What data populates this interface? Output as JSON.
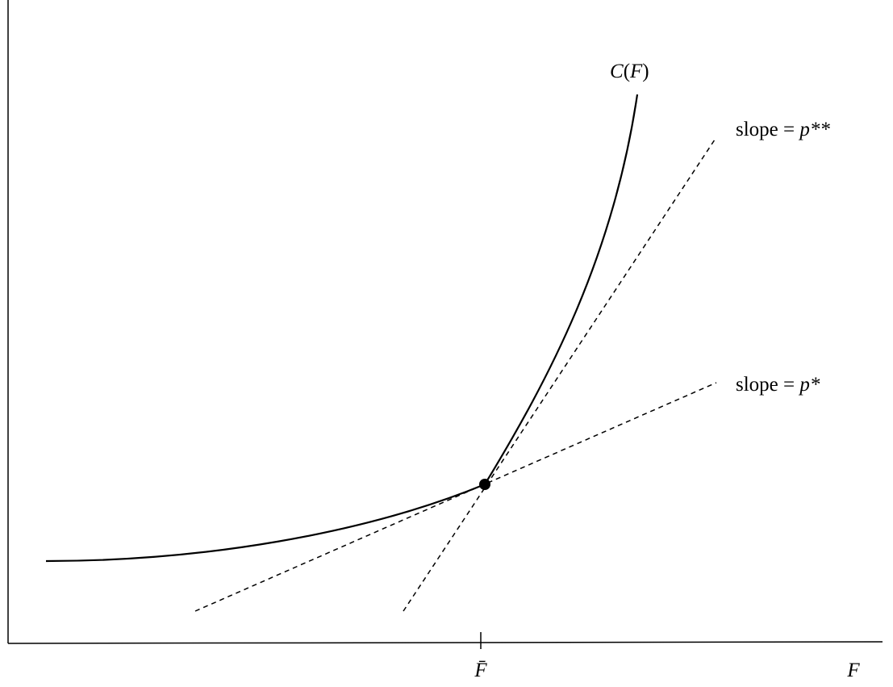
{
  "curve_label": {
    "parts": [
      "C",
      "(",
      "F",
      ")"
    ]
  },
  "lines": [
    {
      "label": {
        "parts": [
          "slope = ",
          "p**"
        ]
      }
    },
    {
      "label": {
        "parts": [
          "slope = ",
          "p*"
        ]
      }
    }
  ],
  "axes": {
    "x_label": "F",
    "x_tick_label": "F̄"
  }
}
